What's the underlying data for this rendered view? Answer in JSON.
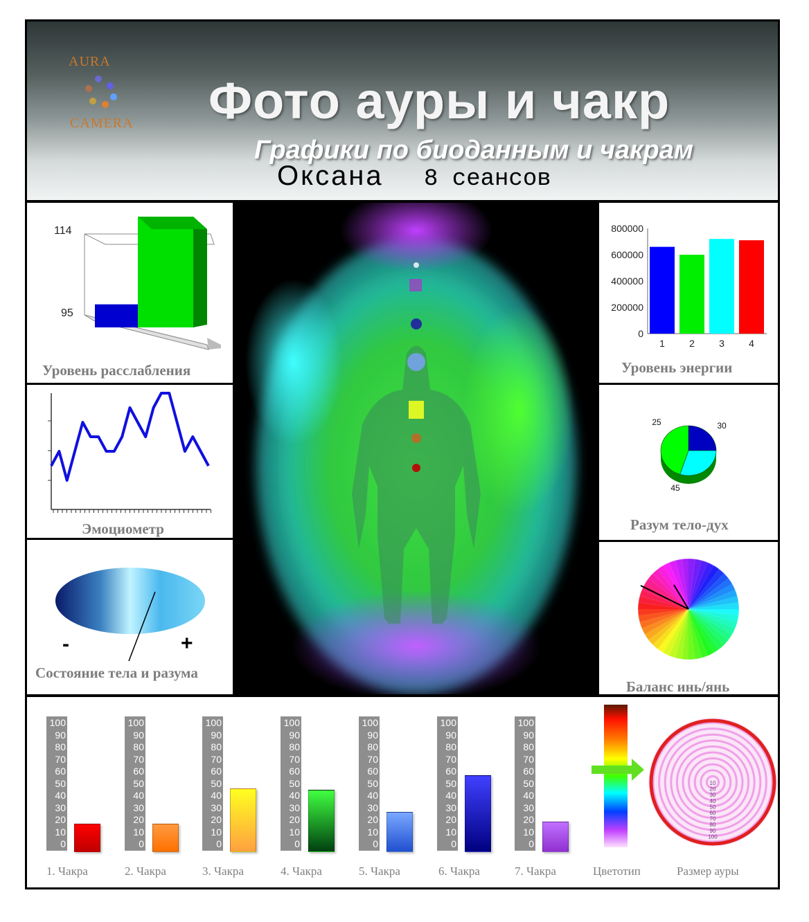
{
  "header": {
    "logo_top": "AURA",
    "logo_bottom": "CAMERA",
    "title": "Фото  ауры и чакр",
    "subtitle": "Графики по биоданным и чакрам",
    "client_name": "Оксана",
    "sessions": "8 сеансов"
  },
  "panels": {
    "relaxation": {
      "label": "Уровень расслабления",
      "chart_data": {
        "type": "bar",
        "values": [
          95,
          114
        ],
        "colors": [
          "#0000d0",
          "#00e000"
        ],
        "tick_labels": [
          "114",
          "95"
        ]
      }
    },
    "emotiometer": {
      "label": "Эмоциометр",
      "chart_data": {
        "type": "line",
        "values": [
          3,
          4,
          2,
          4,
          6,
          5,
          5,
          4,
          4,
          5,
          7,
          6,
          5,
          7,
          8,
          8,
          6,
          4,
          5,
          4,
          3
        ],
        "color": "#1010e0"
      }
    },
    "body_mind": {
      "label": "Состояние тела и разума",
      "minus": "-",
      "plus": "+"
    },
    "energy": {
      "label": "Уровень энергии",
      "chart_data": {
        "type": "bar",
        "categories": [
          "1",
          "2",
          "3",
          "4"
        ],
        "values": [
          660000,
          600000,
          720000,
          710000
        ],
        "colors": [
          "#0000ff",
          "#00ee00",
          "#00ffff",
          "#ff0000"
        ],
        "ylim": [
          0,
          800000
        ],
        "yticks": [
          "800000",
          "600000",
          "400000",
          "200000",
          "0"
        ]
      }
    },
    "mind_body_spirit": {
      "label": "Разум тело-дух",
      "chart_data": {
        "type": "pie",
        "labels": [
          "25",
          "30",
          "45"
        ],
        "values": [
          25,
          30,
          45
        ],
        "colors": [
          "#0000c0",
          "#00ffff",
          "#00ff00"
        ]
      }
    },
    "yin_yang": {
      "label": "Баланс инь/янь"
    }
  },
  "chakras": {
    "scale": [
      "100",
      "90",
      "80",
      "70",
      "60",
      "50",
      "40",
      "30",
      "20",
      "10",
      "0"
    ],
    "chart_data": {
      "type": "bar",
      "categories": [
        "1. Чакра",
        "2. Чакра",
        "3. Чакра",
        "4. Чакра",
        "5. Чакра",
        "6. Чакра",
        "7. Чакра"
      ],
      "values": [
        22,
        22,
        51,
        50,
        32,
        62,
        24
      ],
      "ylim": [
        0,
        100
      ],
      "colors": [
        [
          "#ff0000",
          "#c00000"
        ],
        [
          "#ff9a40",
          "#ff7000"
        ],
        [
          "#ffff20",
          "#ffa040"
        ],
        [
          "#40ff40",
          "#004010"
        ],
        [
          "#7aa8ff",
          "#2050d0"
        ],
        [
          "#4040ff",
          "#000080"
        ],
        [
          "#c070ff",
          "#9030d0"
        ]
      ]
    },
    "colortype_label": "Цветотип",
    "aura_size_label": "Размер ауры",
    "aura_scale": [
      "10",
      "20",
      "30",
      "40",
      "50",
      "60",
      "70",
      "80",
      "90",
      "100"
    ]
  }
}
